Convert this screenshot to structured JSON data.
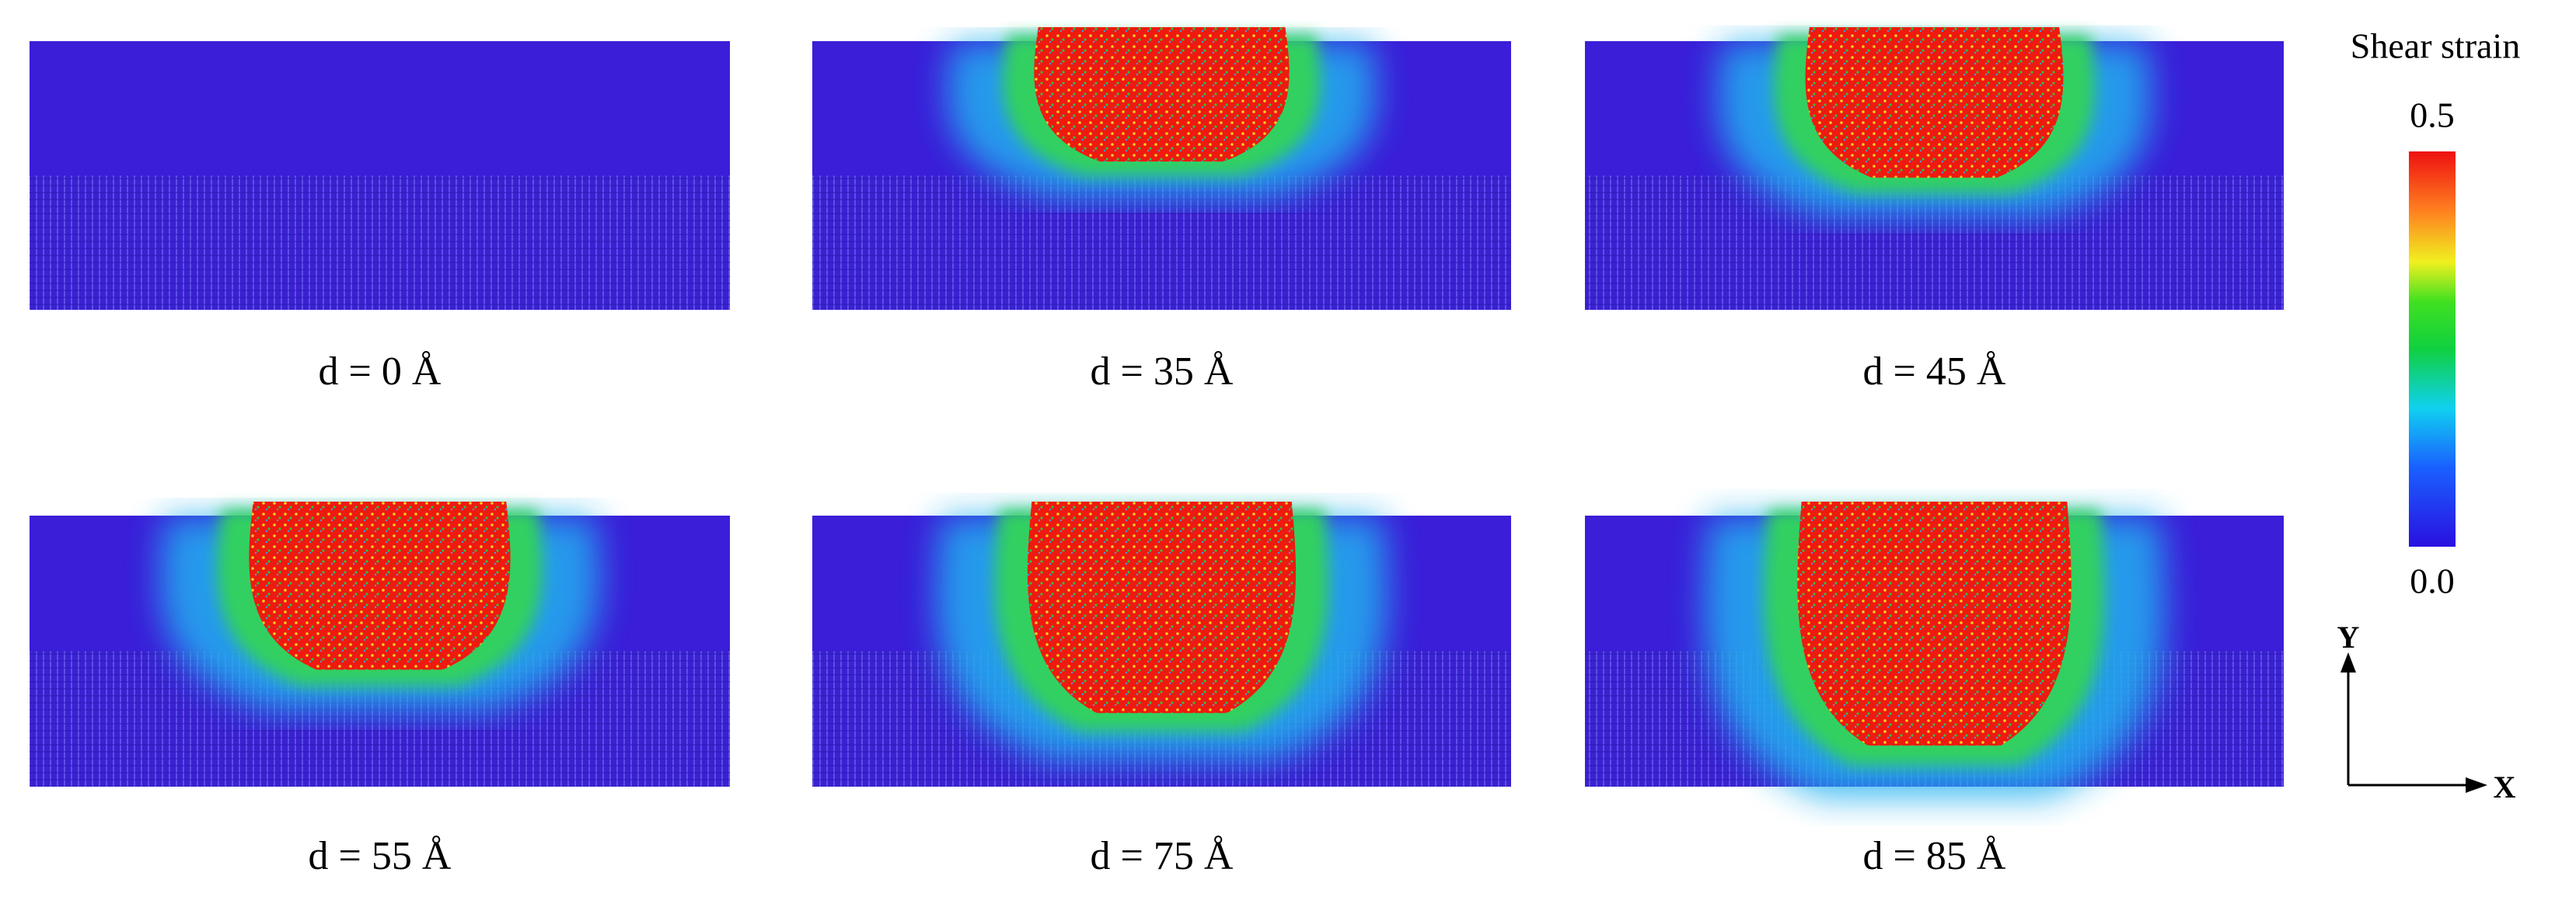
{
  "panels": [
    {
      "label": "d = 0 Å"
    },
    {
      "label": "d = 35 Å"
    },
    {
      "label": "d = 45 Å"
    },
    {
      "label": "d = 55 Å"
    },
    {
      "label": "d = 75 Å"
    },
    {
      "label": "d = 85 Å"
    }
  ],
  "colorbar": {
    "title": "Shear strain",
    "max_label": "0.5",
    "min_label": "0.0"
  },
  "axes": {
    "y_label": "Y",
    "x_label": "X"
  }
}
